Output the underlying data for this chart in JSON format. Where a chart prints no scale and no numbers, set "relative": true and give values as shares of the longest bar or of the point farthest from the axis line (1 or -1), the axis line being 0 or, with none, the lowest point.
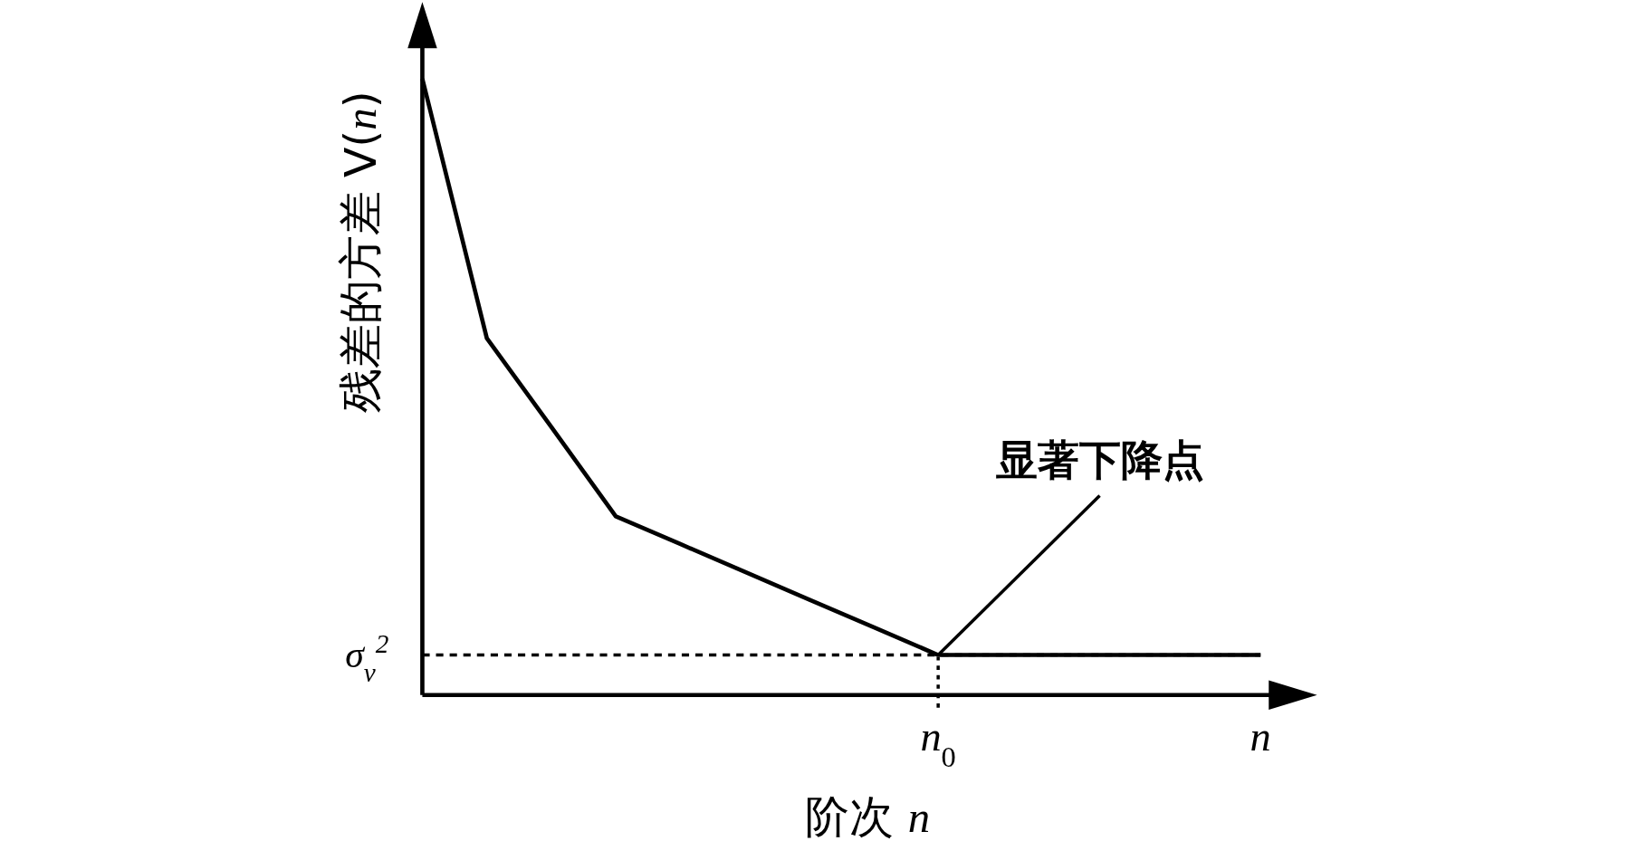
{
  "chart_data": {
    "type": "line",
    "relative": true,
    "xlabel": "阶次 *n*",
    "ylabel": "残差的方差 V(*n*)",
    "categories": [
      null,
      null,
      null,
      null,
      null,
      null,
      null,
      null,
      "*n*$_{0}$",
      null,
      null,
      null,
      null,
      "*n*"
    ],
    "values": [
      1,
      0.579,
      0.435,
      0.29,
      0.245,
      0.2,
      0.155,
      0.11,
      0.065,
      0.065,
      0.065,
      0.065,
      0.065,
      0.065
    ],
    "color": "#000000",
    "line_style": "solid",
    "ref_lines": [
      {
        "axis": "y",
        "value": 0.065,
        "label": "σ$_{v}$$^{2}$",
        "line_style": "dashed"
      }
    ],
    "annotations": [
      {
        "text": "显著下降点",
        "x": "*n*$_{0}$",
        "y": 0.065
      }
    ]
  }
}
